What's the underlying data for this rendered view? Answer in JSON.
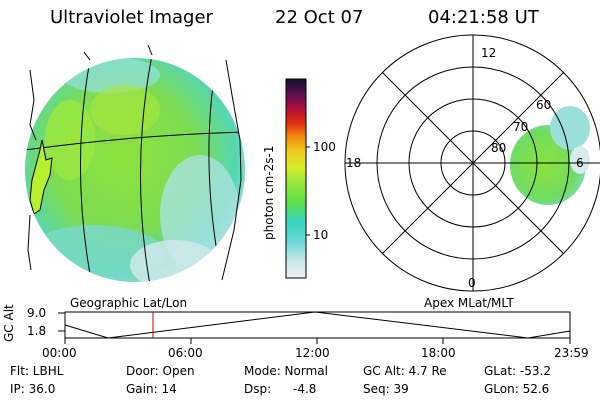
{
  "header": {
    "title": "Ultraviolet Imager",
    "date": "22 Oct 07",
    "time": "04:21:58 UT"
  },
  "colorbar": {
    "label": "photon cm-2s-1",
    "ticks": [
      "100",
      "10"
    ]
  },
  "polar": {
    "mlt_labels": [
      "12",
      "18",
      "6",
      "0"
    ],
    "lat_labels": [
      "60",
      "70",
      "80"
    ]
  },
  "panel_labels": {
    "left": "Geographic Lat/Lon",
    "right": "Apex MLat/MLT"
  },
  "altitude_plot": {
    "ylabel": "GC Alt",
    "yticks": [
      "9.0",
      "1.8"
    ],
    "xticks": [
      "00:00",
      "06:00",
      "12:00",
      "18:00",
      "23:59"
    ]
  },
  "info": {
    "flt": "Flt: LBHL",
    "ip": "IP: 36.0",
    "door": "Door: Open",
    "gain": "Gain: 14",
    "mode": "Mode: Normal",
    "dsp_label": "Dsp:",
    "dsp_value": "-4.8",
    "gcalt": "GC Alt: 4.7 Re",
    "seq": "Seq: 39",
    "glat": "GLat: -53.2",
    "glon": "GLon:  52.6"
  }
}
